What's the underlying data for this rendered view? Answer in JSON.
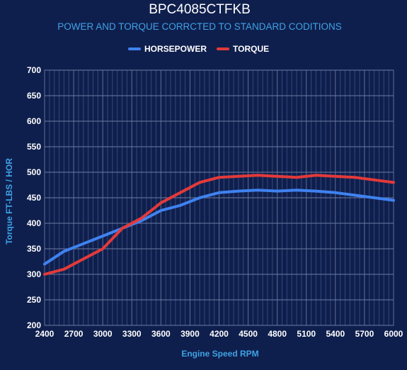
{
  "chart_data": {
    "type": "line",
    "title": "BPC4085CTFKB",
    "subtitle": "POWER AND TORQUE CORRCTED TO STANDARD CODITIONS",
    "xlabel": "Engine Speed RPM",
    "ylabel": "Torque FT-LBS / HOR",
    "xlim": [
      2400,
      6000
    ],
    "ylim": [
      200,
      700
    ],
    "xticks": [
      "2400",
      "2700",
      "3000",
      "3300",
      "3600",
      "3900",
      "4200",
      "4500",
      "4800",
      "5100",
      "5400",
      "5700",
      "6000"
    ],
    "yticks": [
      "200",
      "250",
      "300",
      "350",
      "400",
      "450",
      "500",
      "550",
      "600",
      "650",
      "700"
    ],
    "grid": true,
    "legend_position": "top",
    "x": [
      2400,
      2600,
      2800,
      3000,
      3200,
      3400,
      3600,
      3800,
      4000,
      4200,
      4400,
      4600,
      4800,
      5000,
      5200,
      5400,
      5600,
      5800,
      6000
    ],
    "series": [
      {
        "name": "HORSEPOWER",
        "color": "#3f82f0",
        "values": [
          320,
          345,
          360,
          375,
          390,
          405,
          425,
          435,
          450,
          460,
          463,
          465,
          463,
          465,
          463,
          460,
          455,
          450,
          445
        ]
      },
      {
        "name": "TORQUE",
        "color": "#e23a3a",
        "values": [
          300,
          310,
          330,
          350,
          390,
          410,
          440,
          460,
          480,
          490,
          492,
          494,
          492,
          490,
          494,
          492,
          490,
          485,
          480
        ]
      }
    ]
  }
}
